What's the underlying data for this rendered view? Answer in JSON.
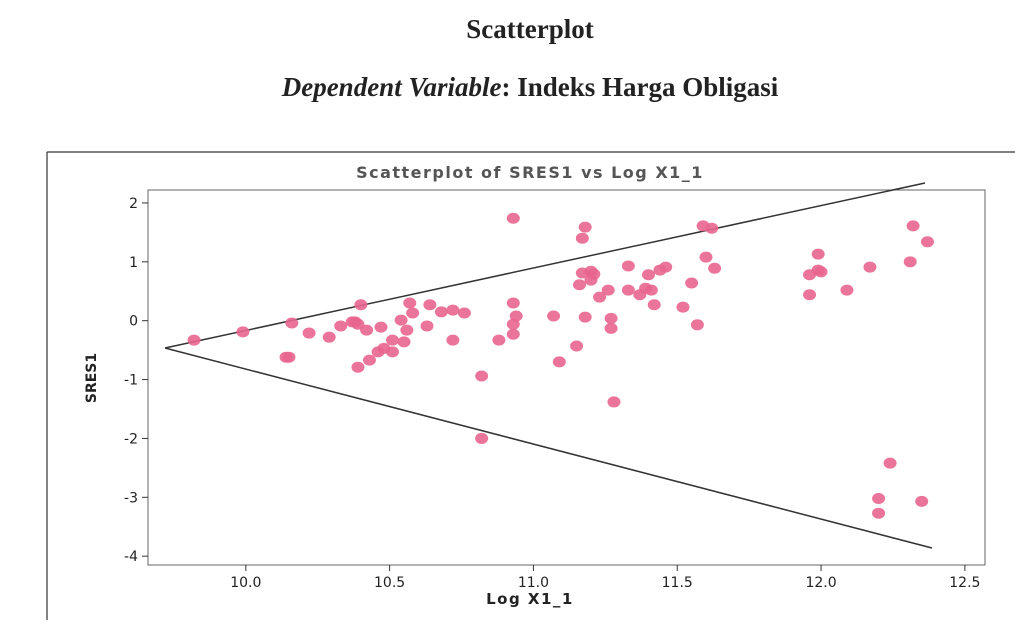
{
  "title": "Scatterplot",
  "caption_label": "Dependent Variable",
  "caption_text": ": Indeks Harga Obligasi",
  "chart_data": {
    "type": "scatter",
    "title": "Scatterplot of SRES1 vs Log X1_1",
    "x_label": "Log X1_1",
    "y_label": "SRES1",
    "color": "#e8658f",
    "xlim": [
      9.66,
      12.57
    ],
    "ylim": [
      -4.15,
      2.22
    ],
    "xticks": [
      {
        "value": 10,
        "label": "10.0"
      },
      10.5,
      {
        "value": 11,
        "label": "11.0"
      },
      11.5,
      {
        "value": 12,
        "label": "12.0"
      },
      12.5
    ],
    "yticks": [
      2,
      1,
      0,
      -1,
      -2,
      -3,
      -4
    ],
    "x": [
      9.82,
      9.99,
      10.14,
      10.15,
      10.16,
      10.22,
      10.29,
      10.33,
      10.37,
      10.38,
      10.39,
      10.4,
      10.39,
      10.43,
      10.42,
      10.47,
      10.46,
      10.51,
      10.51,
      10.48,
      10.54,
      10.56,
      10.57,
      10.58,
      10.55,
      10.64,
      10.68,
      10.63,
      10.72,
      10.76,
      10.72,
      10.82,
      10.82,
      10.88,
      10.93,
      10.93,
      10.94,
      10.93,
      10.93,
      11.07,
      11.09,
      11.15,
      11.17,
      11.18,
      11.17,
      11.2,
      11.21,
      11.16,
      11.2,
      11.18,
      11.23,
      11.26,
      11.27,
      11.27,
      11.28,
      11.33,
      11.33,
      11.37,
      11.39,
      11.4,
      11.44,
      11.46,
      11.41,
      11.42,
      11.52,
      11.55,
      11.57,
      11.59,
      11.62,
      11.6,
      11.63,
      11.96,
      11.96,
      11.99,
      12.0,
      11.99,
      12.09,
      12.17,
      12.2,
      12.2,
      12.24,
      12.31,
      12.32,
      12.35,
      12.37
    ],
    "values": [
      -0.33,
      -0.19,
      -0.62,
      -0.62,
      -0.04,
      -0.21,
      -0.28,
      -0.09,
      -0.02,
      -0.02,
      -0.06,
      0.27,
      -0.79,
      -0.67,
      -0.16,
      -0.11,
      -0.53,
      -0.33,
      -0.53,
      -0.47,
      0.01,
      -0.16,
      0.3,
      0.13,
      -0.36,
      0.27,
      0.15,
      -0.09,
      0.18,
      0.13,
      -0.33,
      -0.94,
      -2.0,
      -0.33,
      1.74,
      0.3,
      0.08,
      -0.06,
      -0.23,
      0.08,
      -0.7,
      -0.43,
      1.4,
      1.59,
      0.81,
      0.84,
      0.79,
      0.61,
      0.69,
      0.06,
      0.4,
      0.52,
      0.04,
      -0.13,
      -1.38,
      0.93,
      0.52,
      0.44,
      0.55,
      0.78,
      0.86,
      0.91,
      0.52,
      0.27,
      0.23,
      0.64,
      -0.07,
      1.61,
      1.57,
      1.08,
      0.89,
      0.78,
      0.44,
      0.86,
      0.83,
      1.13,
      0.52,
      0.91,
      -3.02,
      -3.27,
      -2.42,
      1.0,
      1.61,
      -3.07,
      1.34
    ]
  }
}
